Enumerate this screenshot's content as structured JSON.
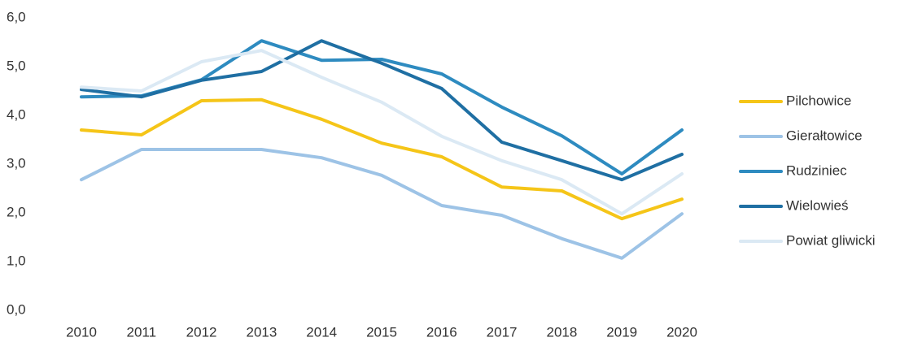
{
  "chart_data": {
    "type": "line",
    "categories": [
      "2010",
      "2011",
      "2012",
      "2013",
      "2014",
      "2015",
      "2016",
      "2017",
      "2018",
      "2019",
      "2020"
    ],
    "series": [
      {
        "name": "Pilchowice",
        "color": "#f5c518",
        "values": [
          3.7,
          3.6,
          4.3,
          4.32,
          3.92,
          3.43,
          3.15,
          2.53,
          2.45,
          1.88,
          2.28
        ]
      },
      {
        "name": "Gierałtowice",
        "color": "#9dc3e6",
        "values": [
          2.68,
          3.3,
          3.3,
          3.3,
          3.13,
          2.77,
          2.15,
          1.95,
          1.47,
          1.07,
          1.98
        ]
      },
      {
        "name": "Rudziniec",
        "color": "#2e8bc0",
        "values": [
          4.38,
          4.4,
          4.73,
          5.53,
          5.13,
          5.15,
          4.85,
          4.17,
          3.58,
          2.8,
          3.7
        ]
      },
      {
        "name": "Wielowieś",
        "color": "#1f6fa3",
        "values": [
          4.53,
          4.38,
          4.72,
          4.9,
          5.53,
          5.07,
          4.55,
          3.45,
          3.07,
          2.68,
          3.2
        ]
      },
      {
        "name": "Powiat gliwicki",
        "color": "#dbe9f4",
        "values": [
          4.58,
          4.5,
          5.1,
          5.33,
          4.78,
          4.27,
          3.57,
          3.07,
          2.68,
          1.98,
          2.8
        ]
      }
    ],
    "ylim": [
      0,
      6
    ],
    "yticks": [
      {
        "value": 0,
        "label": "0,0"
      },
      {
        "value": 1,
        "label": "1,0"
      },
      {
        "value": 2,
        "label": "2,0"
      },
      {
        "value": 3,
        "label": "3,0"
      },
      {
        "value": 4,
        "label": "4,0"
      },
      {
        "value": 5,
        "label": "5,0"
      },
      {
        "value": 6,
        "label": "6,0"
      }
    ],
    "grid": false,
    "legend": "right"
  }
}
